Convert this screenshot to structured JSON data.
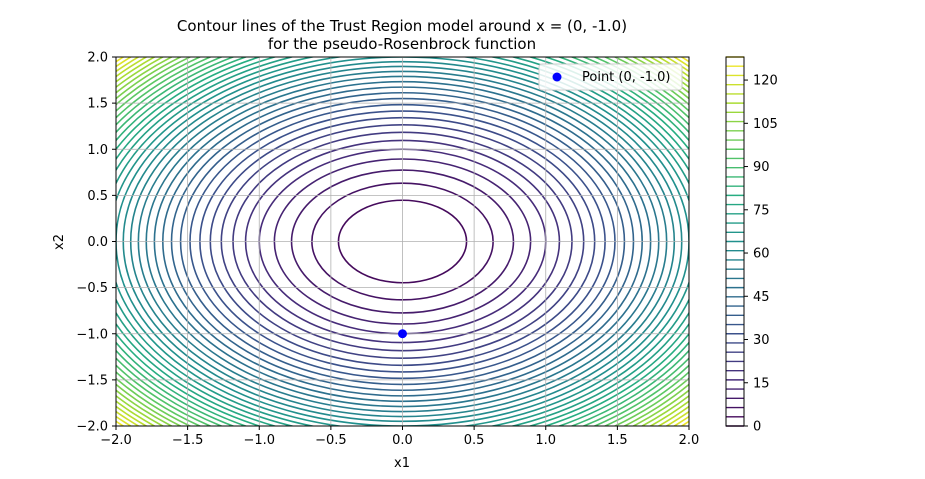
{
  "chart_data": {
    "type": "contour",
    "title": "Contour lines of the Trust Region model around x = (0, -1.0)",
    "subtitle": "for the pseudo-Rosenbrock function",
    "xlabel": "x1",
    "ylabel": "x2",
    "xlim": [
      -2.0,
      2.0
    ],
    "ylim": [
      -2.0,
      2.0
    ],
    "x_ticks": [
      "−2.0",
      "−1.5",
      "−1.0",
      "−0.5",
      "0.0",
      "0.5",
      "1.0",
      "1.5",
      "2.0"
    ],
    "y_ticks": [
      "−2.0",
      "−1.5",
      "−1.0",
      "−0.5",
      "0.0",
      "0.5",
      "1.0",
      "1.5",
      "2.0"
    ],
    "x_tick_values": [
      -2.0,
      -1.5,
      -1.0,
      -0.5,
      0.0,
      0.5,
      1.0,
      1.5,
      2.0
    ],
    "y_tick_values": [
      -2.0,
      -1.5,
      -1.0,
      -0.5,
      0.0,
      0.5,
      1.0,
      1.5,
      2.0
    ],
    "grid": true,
    "colormap": "viridis",
    "model_center": [
      0.0,
      0.0
    ],
    "model_coefficient": 16,
    "level_min": 0,
    "level_max": 128,
    "level_step": 3.2,
    "colorbar_ticks": [
      "0",
      "15",
      "30",
      "45",
      "60",
      "75",
      "90",
      "105",
      "120"
    ],
    "colorbar_tick_values": [
      0,
      15,
      30,
      45,
      60,
      75,
      90,
      105,
      120
    ],
    "scatter": {
      "name": "Point (0, -1.0)",
      "x": 0.0,
      "y": -1.0,
      "color": "#0000ff"
    },
    "legend_placement": "upper-right"
  }
}
